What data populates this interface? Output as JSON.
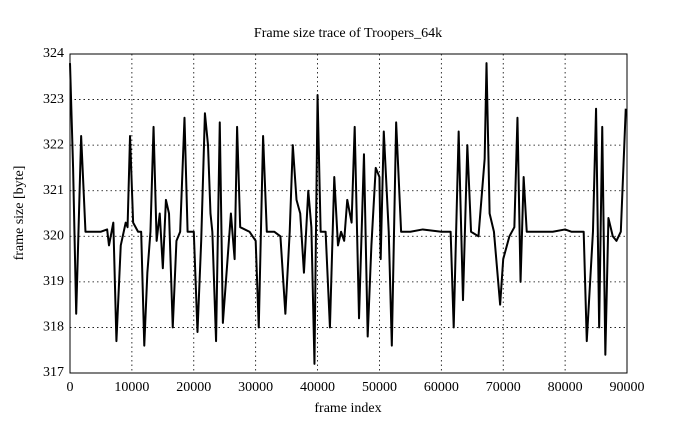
{
  "chart_data": {
    "type": "line",
    "title": "Frame size trace of Troopers_64k",
    "xlabel": "frame index",
    "ylabel": "frame size [byte]",
    "x": [
      0,
      500,
      1000,
      1800,
      2500,
      5000,
      6000,
      6300,
      7000,
      7500,
      8200,
      9000,
      9300,
      9700,
      10200,
      11000,
      11500,
      12000,
      12500,
      13000,
      13500,
      14000,
      14500,
      15000,
      15500,
      16000,
      16600,
      17200,
      17800,
      18500,
      19000,
      20000,
      20600,
      21200,
      21800,
      22300,
      22700,
      23000,
      23600,
      24200,
      24700,
      26000,
      26600,
      27000,
      27500,
      29000,
      30000,
      30500,
      31200,
      31800,
      33000,
      34000,
      34800,
      35500,
      36000,
      36600,
      37200,
      37800,
      38500,
      39000,
      39500,
      40000,
      40500,
      41300,
      42000,
      42700,
      43300,
      43800,
      44300,
      44800,
      45500,
      46000,
      46700,
      47500,
      48100,
      48700,
      49400,
      50000,
      50200,
      50700,
      51500,
      52000,
      52700,
      53500,
      55000,
      57000,
      60000,
      61500,
      62000,
      62800,
      63500,
      64200,
      64800,
      66000,
      67000,
      67300,
      67800,
      68500,
      69500,
      70000,
      71000,
      71800,
      72300,
      72800,
      73300,
      73800,
      75000,
      78000,
      80000,
      81000,
      82000,
      83000,
      83500,
      84500,
      85000,
      85500,
      86000,
      86500,
      87000,
      87700,
      88300,
      89000,
      89800
    ],
    "values": [
      323.8,
      321.5,
      318.3,
      322.2,
      320.1,
      320.1,
      320.15,
      319.8,
      320.3,
      317.7,
      319.8,
      320.3,
      320.2,
      322.2,
      320.3,
      320.1,
      320.1,
      317.6,
      319.2,
      320.1,
      322.4,
      319.9,
      320.5,
      319.3,
      320.8,
      320.5,
      318.0,
      319.9,
      320.1,
      322.6,
      320.1,
      320.1,
      317.9,
      319.9,
      322.7,
      322.0,
      320.5,
      320.1,
      317.7,
      322.5,
      318.1,
      320.5,
      319.5,
      322.4,
      320.2,
      320.1,
      319.9,
      318.0,
      322.2,
      320.1,
      320.1,
      320.0,
      318.3,
      320.1,
      322.0,
      320.8,
      320.5,
      319.2,
      321.0,
      320.2,
      317.2,
      323.1,
      320.1,
      320.1,
      318.0,
      321.3,
      319.8,
      320.1,
      319.9,
      320.8,
      320.3,
      322.4,
      318.2,
      321.8,
      317.8,
      319.8,
      321.5,
      321.3,
      319.5,
      322.3,
      320.1,
      317.6,
      322.5,
      320.1,
      320.1,
      320.15,
      320.1,
      320.1,
      318.0,
      322.3,
      318.6,
      322.0,
      320.1,
      320.0,
      321.7,
      323.8,
      320.5,
      320.1,
      318.5,
      319.5,
      320.0,
      320.2,
      322.6,
      319.0,
      321.3,
      320.1,
      320.1,
      320.1,
      320.15,
      320.1,
      320.1,
      320.1,
      317.7,
      320.1,
      322.8,
      318.0,
      322.4,
      317.4,
      320.4,
      320.0,
      319.9,
      320.1,
      322.8
    ],
    "color": "#000000",
    "xlim": [
      0,
      90000
    ],
    "xticks": [
      0,
      10000,
      20000,
      30000,
      40000,
      50000,
      60000,
      70000,
      80000,
      90000
    ],
    "ylim": [
      317,
      324
    ],
    "yticks": [
      317,
      318,
      319,
      320,
      321,
      322,
      323,
      324
    ],
    "grid": true
  }
}
